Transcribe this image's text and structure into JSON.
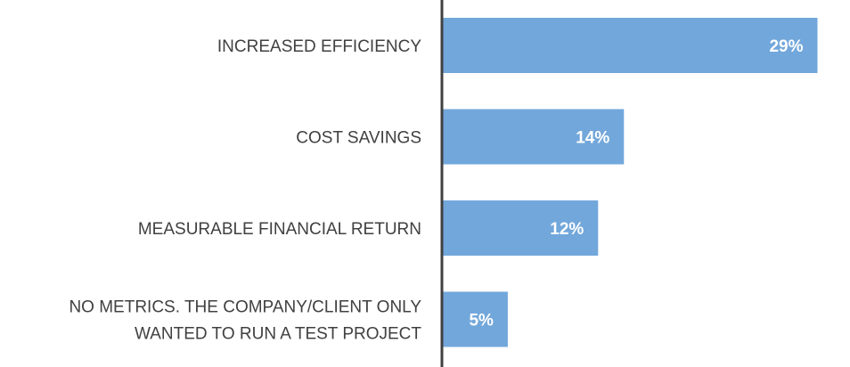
{
  "chart_data": {
    "type": "bar",
    "orientation": "horizontal",
    "title": "",
    "xlabel": "",
    "ylabel": "",
    "categories": [
      "INCREASED EFFICIENCY",
      "COST SAVINGS",
      "MEASURABLE FINANCIAL RETURN",
      "NO METRICS. THE COMPANY/CLIENT ONLY WANTED TO RUN A TEST PROJECT"
    ],
    "category_lines": [
      [
        "INCREASED EFFICIENCY"
      ],
      [
        "COST SAVINGS"
      ],
      [
        "MEASURABLE FINANCIAL RETURN"
      ],
      [
        "NO METRICS. THE COMPANY/CLIENT ONLY",
        "WANTED TO RUN A TEST PROJECT"
      ]
    ],
    "values": [
      29,
      14,
      12,
      5
    ],
    "value_labels": [
      "29%",
      "14%",
      "12%",
      "5%"
    ],
    "unit": "%",
    "xlim": [
      0,
      29
    ],
    "grid": false,
    "legend": "none",
    "bar_color": "#72a7db",
    "axis_color": "#404040",
    "label_color": "#404040",
    "data_label_color": "#ffffff"
  }
}
